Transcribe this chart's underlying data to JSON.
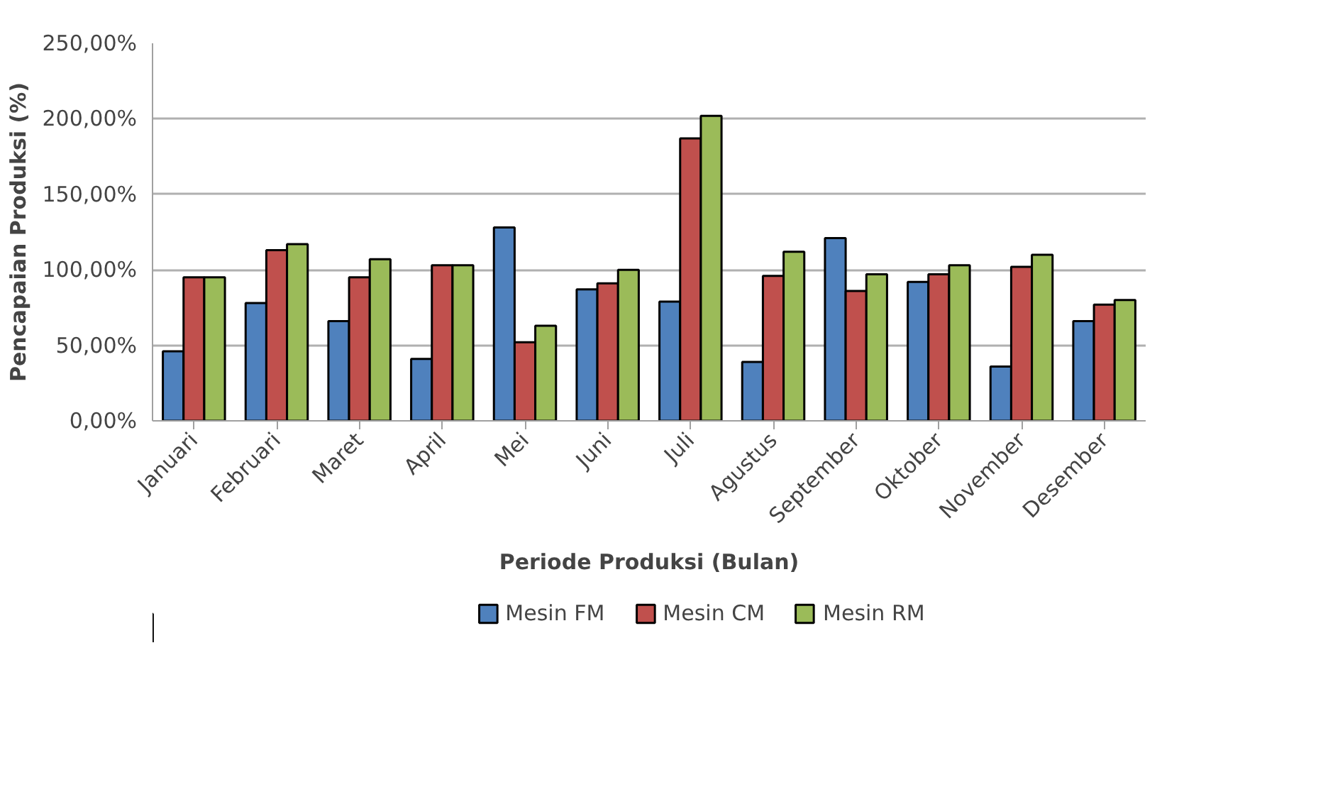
{
  "chart_data": {
    "type": "bar",
    "xlabel": "Periode Produksi (Bulan)",
    "ylabel": "Pencapaian Produksi (%)",
    "categories": [
      "Januari",
      "Februari",
      "Maret",
      "April",
      "Mei",
      "Juni",
      "Juli",
      "Agustus",
      "September",
      "Oktober",
      "November",
      "Desember"
    ],
    "series": [
      {
        "name": "Mesin FM",
        "color": "#4f81bd",
        "values": [
          46,
          78,
          66,
          41,
          128,
          87,
          79,
          39,
          121,
          92,
          36,
          66
        ]
      },
      {
        "name": "Mesin CM",
        "color": "#c0504d",
        "values": [
          95,
          113,
          95,
          103,
          52,
          91,
          187,
          96,
          86,
          97,
          102,
          77
        ]
      },
      {
        "name": "Mesin RM",
        "color": "#9bbb59",
        "values": [
          95,
          117,
          107,
          103,
          63,
          100,
          202,
          112,
          97,
          103,
          110,
          80
        ]
      }
    ],
    "ylim": [
      0,
      250
    ],
    "yticks": [
      {
        "value": 0,
        "label": "0,00%"
      },
      {
        "value": 50,
        "label": "50,00%"
      },
      {
        "value": 100,
        "label": "100,00%"
      },
      {
        "value": 150,
        "label": "150,00%"
      },
      {
        "value": 200,
        "label": "200,00%"
      },
      {
        "value": 250,
        "label": "250,00%"
      }
    ],
    "grid": "y",
    "legend": "bottom"
  }
}
